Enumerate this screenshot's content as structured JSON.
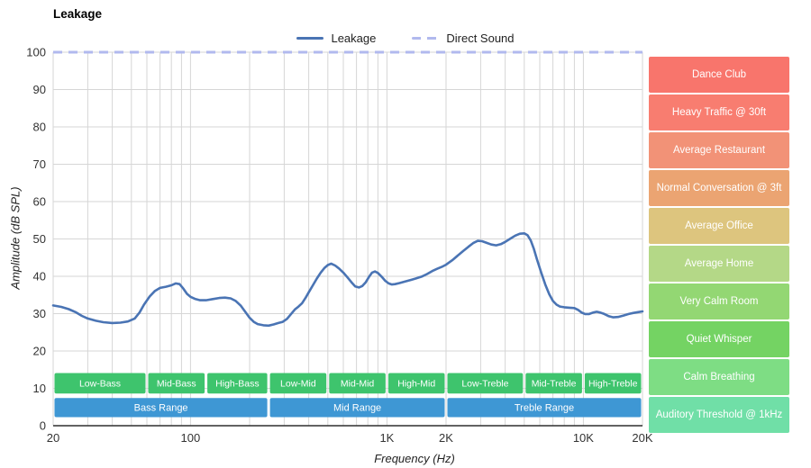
{
  "title": "Leakage",
  "legend": {
    "items": [
      {
        "label": "Leakage",
        "color": "#4a74b4",
        "style": "solid"
      },
      {
        "label": "Direct Sound",
        "color": "#b1b9ee",
        "style": "dashed"
      }
    ]
  },
  "axes": {
    "x_label": "Frequency (Hz)",
    "y_label": "Amplitude (dB SPL)",
    "x_ticks": [
      {
        "value": 20,
        "label": "20"
      },
      {
        "value": 100,
        "label": "100"
      },
      {
        "value": 1000,
        "label": "1K"
      },
      {
        "value": 2000,
        "label": "2K"
      },
      {
        "value": 10000,
        "label": "10K"
      },
      {
        "value": 20000,
        "label": "20K"
      }
    ],
    "y_ticks": [
      {
        "value": 0,
        "label": "0"
      },
      {
        "value": 10,
        "label": "10"
      },
      {
        "value": 20,
        "label": "20"
      },
      {
        "value": 30,
        "label": "30"
      },
      {
        "value": 40,
        "label": "40"
      },
      {
        "value": 50,
        "label": "50"
      },
      {
        "value": 60,
        "label": "60"
      },
      {
        "value": 70,
        "label": "70"
      },
      {
        "value": 80,
        "label": "80"
      },
      {
        "value": 90,
        "label": "90"
      },
      {
        "value": 100,
        "label": "100"
      }
    ]
  },
  "style": {
    "grid_color": "#d6d6d6",
    "bottom_axis_color": "#2f2f2f",
    "tick_text_color": "#333333",
    "sub_band_color": "#3ec46d",
    "main_band_color": "#3e97d4",
    "band_text_color": "#ffffff"
  },
  "chart_data": {
    "type": "line",
    "title": "Leakage",
    "x_axis": {
      "label": "Frequency (Hz)",
      "scale": "log",
      "range": [
        20,
        20000
      ]
    },
    "y_axis": {
      "label": "Amplitude (dB SPL)",
      "range": [
        0,
        100
      ]
    },
    "legend_position": "top-center",
    "grid": true,
    "series": [
      {
        "name": "Leakage",
        "color": "#4a74b4",
        "style": "solid",
        "points": [
          [
            20,
            32.2
          ],
          [
            22,
            31.8
          ],
          [
            24,
            31.2
          ],
          [
            26,
            30.4
          ],
          [
            28,
            29.4
          ],
          [
            30,
            28.7
          ],
          [
            33,
            28.1
          ],
          [
            36,
            27.7
          ],
          [
            40,
            27.5
          ],
          [
            44,
            27.6
          ],
          [
            48,
            27.9
          ],
          [
            52,
            28.7
          ],
          [
            55,
            30.3
          ],
          [
            58,
            32.4
          ],
          [
            62,
            34.6
          ],
          [
            66,
            36.1
          ],
          [
            70,
            36.9
          ],
          [
            75,
            37.2
          ],
          [
            80,
            37.6
          ],
          [
            84,
            38.1
          ],
          [
            88,
            37.9
          ],
          [
            92,
            36.7
          ],
          [
            96,
            35.3
          ],
          [
            100,
            34.5
          ],
          [
            106,
            33.9
          ],
          [
            112,
            33.6
          ],
          [
            120,
            33.6
          ],
          [
            130,
            33.9
          ],
          [
            140,
            34.2
          ],
          [
            150,
            34.3
          ],
          [
            160,
            34.1
          ],
          [
            170,
            33.4
          ],
          [
            180,
            32.2
          ],
          [
            190,
            30.5
          ],
          [
            200,
            28.9
          ],
          [
            210,
            27.8
          ],
          [
            220,
            27.2
          ],
          [
            235,
            26.9
          ],
          [
            250,
            26.8
          ],
          [
            265,
            27.1
          ],
          [
            280,
            27.5
          ],
          [
            295,
            27.8
          ],
          [
            310,
            28.6
          ],
          [
            325,
            29.9
          ],
          [
            340,
            31.1
          ],
          [
            355,
            31.9
          ],
          [
            370,
            32.8
          ],
          [
            385,
            34.2
          ],
          [
            400,
            35.7
          ],
          [
            420,
            37.6
          ],
          [
            440,
            39.4
          ],
          [
            460,
            41.0
          ],
          [
            480,
            42.2
          ],
          [
            500,
            43.0
          ],
          [
            520,
            43.4
          ],
          [
            545,
            42.9
          ],
          [
            570,
            42.1
          ],
          [
            600,
            41.0
          ],
          [
            630,
            39.7
          ],
          [
            660,
            38.4
          ],
          [
            690,
            37.3
          ],
          [
            720,
            37.0
          ],
          [
            750,
            37.4
          ],
          [
            780,
            38.4
          ],
          [
            810,
            39.8
          ],
          [
            840,
            41.0
          ],
          [
            870,
            41.3
          ],
          [
            900,
            40.9
          ],
          [
            940,
            39.9
          ],
          [
            980,
            38.8
          ],
          [
            1020,
            38.1
          ],
          [
            1060,
            37.8
          ],
          [
            1100,
            37.9
          ],
          [
            1160,
            38.2
          ],
          [
            1240,
            38.6
          ],
          [
            1320,
            39.0
          ],
          [
            1400,
            39.4
          ],
          [
            1500,
            39.9
          ],
          [
            1600,
            40.6
          ],
          [
            1700,
            41.4
          ],
          [
            1800,
            42.0
          ],
          [
            1900,
            42.5
          ],
          [
            2000,
            43.1
          ],
          [
            2150,
            44.3
          ],
          [
            2300,
            45.6
          ],
          [
            2450,
            46.8
          ],
          [
            2600,
            47.9
          ],
          [
            2750,
            48.9
          ],
          [
            2900,
            49.5
          ],
          [
            3050,
            49.4
          ],
          [
            3200,
            49.0
          ],
          [
            3400,
            48.5
          ],
          [
            3600,
            48.3
          ],
          [
            3800,
            48.6
          ],
          [
            4000,
            49.2
          ],
          [
            4250,
            50.1
          ],
          [
            4500,
            50.9
          ],
          [
            4750,
            51.4
          ],
          [
            5000,
            51.5
          ],
          [
            5200,
            51.0
          ],
          [
            5400,
            49.6
          ],
          [
            5600,
            47.3
          ],
          [
            5800,
            44.6
          ],
          [
            6100,
            41.0
          ],
          [
            6400,
            37.8
          ],
          [
            6700,
            35.2
          ],
          [
            7000,
            33.4
          ],
          [
            7300,
            32.4
          ],
          [
            7600,
            31.9
          ],
          [
            8000,
            31.7
          ],
          [
            8500,
            31.6
          ],
          [
            9000,
            31.5
          ],
          [
            9400,
            31.0
          ],
          [
            9800,
            30.3
          ],
          [
            10200,
            29.9
          ],
          [
            10700,
            29.9
          ],
          [
            11200,
            30.3
          ],
          [
            11700,
            30.5
          ],
          [
            12200,
            30.3
          ],
          [
            12800,
            29.9
          ],
          [
            13500,
            29.3
          ],
          [
            14200,
            29.0
          ],
          [
            15000,
            29.1
          ],
          [
            16000,
            29.5
          ],
          [
            17000,
            29.9
          ],
          [
            18000,
            30.2
          ],
          [
            19000,
            30.4
          ],
          [
            20000,
            30.6
          ]
        ]
      },
      {
        "name": "Direct Sound",
        "color": "#b1b9ee",
        "style": "dashed",
        "points": [
          [
            20,
            100
          ],
          [
            20000,
            100
          ]
        ]
      }
    ],
    "frequency_bands": {
      "sub": [
        {
          "label": "Low-Bass",
          "from": 20,
          "to": 60
        },
        {
          "label": "Mid-Bass",
          "from": 60,
          "to": 120
        },
        {
          "label": "High-Bass",
          "from": 120,
          "to": 250
        },
        {
          "label": "Low-Mid",
          "from": 250,
          "to": 500
        },
        {
          "label": "Mid-Mid",
          "from": 500,
          "to": 1000
        },
        {
          "label": "High-Mid",
          "from": 1000,
          "to": 2000
        },
        {
          "label": "Low-Treble",
          "from": 2000,
          "to": 5000
        },
        {
          "label": "Mid-Treble",
          "from": 5000,
          "to": 10000
        },
        {
          "label": "High-Treble",
          "from": 10000,
          "to": 20000
        }
      ],
      "main": [
        {
          "label": "Bass Range",
          "from": 20,
          "to": 250
        },
        {
          "label": "Mid Range",
          "from": 250,
          "to": 2000
        },
        {
          "label": "Treble Range",
          "from": 2000,
          "to": 20000
        }
      ]
    },
    "noise_levels": [
      {
        "label": "Dance Club",
        "color": "#f8756c"
      },
      {
        "label": "Heavy Traffic @ 30ft",
        "color": "#f87d70"
      },
      {
        "label": "Average Restaurant",
        "color": "#f29277"
      },
      {
        "label": "Normal Conversation @ 3ft",
        "color": "#eba472"
      },
      {
        "label": "Average Office",
        "color": "#ddc57e"
      },
      {
        "label": "Average Home",
        "color": "#b4d887"
      },
      {
        "label": "Very Calm Room",
        "color": "#93d773"
      },
      {
        "label": "Quiet Whisper",
        "color": "#74d363"
      },
      {
        "label": "Calm Breathing",
        "color": "#7edd84"
      },
      {
        "label": "Auditory Threshold @ 1kHz",
        "color": "#70dfa7"
      }
    ]
  }
}
